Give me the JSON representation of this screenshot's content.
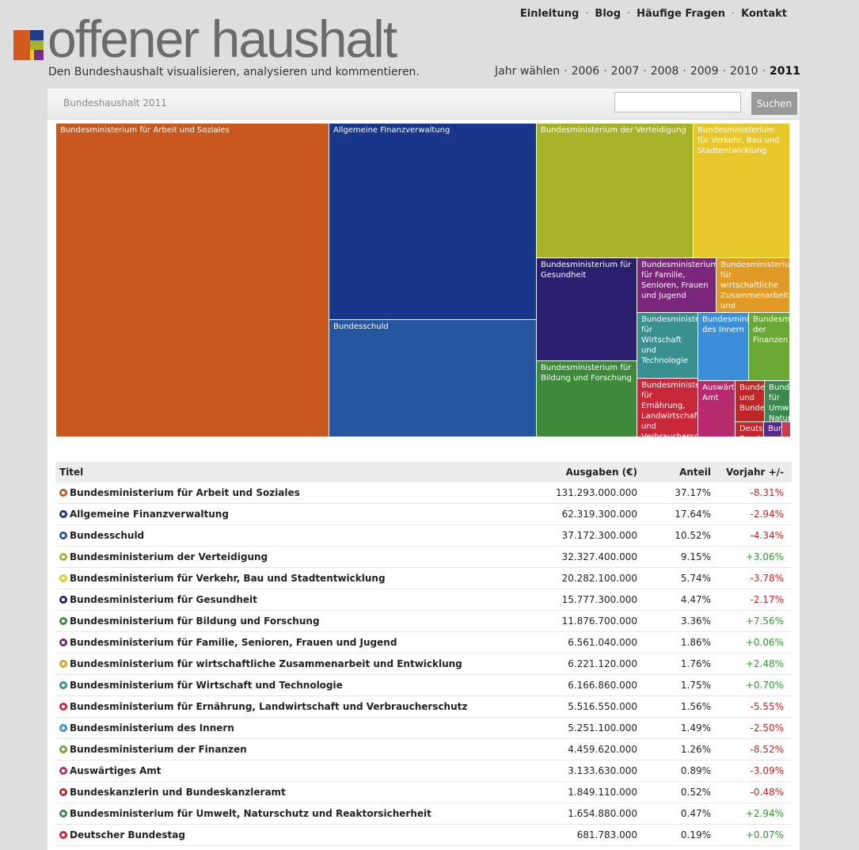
{
  "header": {
    "logo_text": "offener haushalt",
    "tagline": "Den Bundeshaushalt visualisieren, analysieren und kommentieren.",
    "nav": [
      "Einleitung",
      "Blog",
      "Häufige Fragen",
      "Kontakt"
    ],
    "year_label": "Jahr wählen",
    "years": [
      "2006",
      "2007",
      "2008",
      "2009",
      "2010",
      "2011"
    ],
    "current_year": "2011"
  },
  "search": {
    "title": "Bundeshaushalt 2011",
    "placeholder": "",
    "button_label": "Suchen"
  },
  "treemap": [
    {
      "label": "Bundesministerium für Arbeit und Soziales",
      "color": "#c8581d"
    },
    {
      "label": "Allgemeine Finanzverwaltung",
      "color": "#18368a"
    },
    {
      "label": "Bundesschuld",
      "color": "#2656a0"
    },
    {
      "label": "Bundesministerium der Verteidigung",
      "color": "#a8b228"
    },
    {
      "label": "Bundesministerium für Verkehr, Bau und Stadtentwicklung",
      "color": "#e8c72a"
    },
    {
      "label": "Bundesministerium für Gesundheit",
      "color": "#2a1f6e"
    },
    {
      "label": "Bundesministerium für Familie, Senioren, Frauen und Jugend",
      "color": "#7a267a"
    },
    {
      "label": "Bundesministerium für wirtschaftliche Zusammenarbeit und Entwicklung",
      "color": "#e29a26"
    },
    {
      "label": "Bundesministerium für Bildung und Forschung",
      "color": "#3e8a3a"
    },
    {
      "label": "Bundesministerium für Wirtschaft und Technologie",
      "color": "#3a9090"
    },
    {
      "label": "Bundesministerium des Innern",
      "color": "#3b8fd8"
    },
    {
      "label": "Bundesministerium der Finanzen",
      "color": "#6aa834"
    },
    {
      "label": "Bundesministerium für Ernährung, Landwirtschaft und Verbraucherschutz",
      "color": "#c8283a"
    },
    {
      "label": "Auswärtiges Amt",
      "color": "#b82a6e"
    },
    {
      "label": "Bundeskanzlerin und Bundeskanzleramt",
      "color": "#c02828"
    },
    {
      "label": "Bundesministerium für Umwelt, Naturschutz und Reaktorsicherheit",
      "color": "#3a8a50"
    },
    {
      "label": "Deutscher Bundestag",
      "color": "#c4282e"
    },
    {
      "label": "Bundes",
      "color": "#5a2a8a"
    },
    {
      "label": "",
      "color": "#c83a50"
    }
  ],
  "table": {
    "headers": {
      "title": "Titel",
      "amount": "Ausgaben (€)",
      "share": "Anteil",
      "prev": "Vorjahr +/-"
    },
    "rows": [
      {
        "title": "Bundesministerium für Arbeit und Soziales",
        "amount": "131.293.000.000",
        "share": "37.17%",
        "prev": "-8.31%",
        "color": "#c8581d",
        "trend": "neg"
      },
      {
        "title": "Allgemeine Finanzverwaltung",
        "amount": "62.319.300.000",
        "share": "17.64%",
        "prev": "-2.94%",
        "color": "#18368a",
        "trend": "neg"
      },
      {
        "title": "Bundesschuld",
        "amount": "37.172.300.000",
        "share": "10.52%",
        "prev": "-4.34%",
        "color": "#2656a0",
        "trend": "neg"
      },
      {
        "title": "Bundesministerium der Verteidigung",
        "amount": "32.327.400.000",
        "share": "9.15%",
        "prev": "+3.06%",
        "color": "#a8b228",
        "trend": "pos"
      },
      {
        "title": "Bundesministerium für Verkehr, Bau und Stadtentwicklung",
        "amount": "20.282.100.000",
        "share": "5.74%",
        "prev": "-3.78%",
        "color": "#e8c72a",
        "trend": "neg"
      },
      {
        "title": "Bundesministerium für Gesundheit",
        "amount": "15.777.300.000",
        "share": "4.47%",
        "prev": "-2.17%",
        "color": "#2a1f6e",
        "trend": "neg"
      },
      {
        "title": "Bundesministerium für Bildung und Forschung",
        "amount": "11.876.700.000",
        "share": "3.36%",
        "prev": "+7.56%",
        "color": "#3e8a3a",
        "trend": "pos"
      },
      {
        "title": "Bundesministerium für Familie, Senioren, Frauen und Jugend",
        "amount": "6.561.040.000",
        "share": "1.86%",
        "prev": "+0.06%",
        "color": "#7a267a",
        "trend": "pos"
      },
      {
        "title": "Bundesministerium für wirtschaftliche Zusammenarbeit und Entwicklung",
        "amount": "6.221.120.000",
        "share": "1.76%",
        "prev": "+2.48%",
        "color": "#e29a26",
        "trend": "pos"
      },
      {
        "title": "Bundesministerium für Wirtschaft und Technologie",
        "amount": "6.166.860.000",
        "share": "1.75%",
        "prev": "+0.70%",
        "color": "#3a9090",
        "trend": "pos"
      },
      {
        "title": "Bundesministerium für Ernährung, Landwirtschaft und Verbraucherschutz",
        "amount": "5.516.550.000",
        "share": "1.56%",
        "prev": "-5.55%",
        "color": "#c8283a",
        "trend": "neg"
      },
      {
        "title": "Bundesministerium des Innern",
        "amount": "5.251.100.000",
        "share": "1.49%",
        "prev": "-2.50%",
        "color": "#3b8fd8",
        "trend": "neg"
      },
      {
        "title": "Bundesministerium der Finanzen",
        "amount": "4.459.620.000",
        "share": "1.26%",
        "prev": "-8.52%",
        "color": "#6aa834",
        "trend": "neg"
      },
      {
        "title": "Auswärtiges Amt",
        "amount": "3.133.630.000",
        "share": "0.89%",
        "prev": "-3.09%",
        "color": "#b82a6e",
        "trend": "neg"
      },
      {
        "title": "Bundeskanzlerin und Bundeskanzleramt",
        "amount": "1.849.110.000",
        "share": "0.52%",
        "prev": "-0.48%",
        "color": "#c02828",
        "trend": "neg"
      },
      {
        "title": "Bundesministerium für Umwelt, Naturschutz und Reaktorsicherheit",
        "amount": "1.654.880.000",
        "share": "0.47%",
        "prev": "+2.94%",
        "color": "#3a8a50",
        "trend": "pos"
      },
      {
        "title": "Deutscher Bundestag",
        "amount": "681.783.000",
        "share": "0.19%",
        "prev": "+0.07%",
        "color": "#c4282e",
        "trend": "pos"
      }
    ]
  }
}
